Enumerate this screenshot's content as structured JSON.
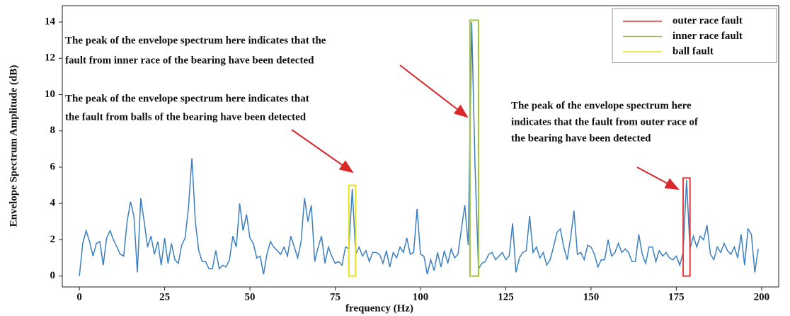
{
  "chart_data": {
    "type": "line",
    "xlabel": "frequency (Hz)",
    "ylabel": "Envelope Spectrum Amplitude (dB)",
    "color": "#3a7fc1",
    "x": [
      0,
      1,
      2,
      3,
      4,
      5,
      6,
      7,
      8,
      9,
      10,
      11,
      12,
      13,
      14,
      15,
      16,
      17,
      18,
      19,
      20,
      21,
      22,
      23,
      24,
      25,
      26,
      27,
      28,
      29,
      30,
      31,
      32,
      33,
      34,
      35,
      36,
      37,
      38,
      39,
      40,
      41,
      42,
      43,
      44,
      45,
      46,
      47,
      48,
      49,
      50,
      51,
      52,
      53,
      54,
      55,
      56,
      57,
      58,
      59,
      60,
      61,
      62,
      63,
      64,
      65,
      66,
      67,
      68,
      69,
      70,
      71,
      72,
      73,
      74,
      75,
      76,
      77,
      78,
      79,
      80,
      81,
      82,
      83,
      84,
      85,
      86,
      87,
      88,
      89,
      90,
      91,
      92,
      93,
      94,
      95,
      96,
      97,
      98,
      99,
      100,
      101,
      102,
      103,
      104,
      105,
      106,
      107,
      108,
      109,
      110,
      111,
      112,
      113,
      114,
      115,
      116,
      117,
      118,
      119,
      120,
      121,
      122,
      123,
      124,
      125,
      126,
      127,
      128,
      129,
      130,
      131,
      132,
      133,
      134,
      135,
      136,
      137,
      138,
      139,
      140,
      141,
      142,
      143,
      144,
      145,
      146,
      147,
      148,
      149,
      150,
      151,
      152,
      153,
      154,
      155,
      156,
      157,
      158,
      159,
      160,
      161,
      162,
      163,
      164,
      165,
      166,
      167,
      168,
      169,
      170,
      171,
      172,
      173,
      174,
      175,
      176,
      177,
      178,
      179,
      180,
      181,
      182,
      183,
      184,
      185,
      186,
      187,
      188,
      189,
      190,
      191,
      192,
      193,
      194,
      195,
      196,
      197,
      198,
      199
    ],
    "values": [
      0,
      1.8,
      2.5,
      1.9,
      1.1,
      1.8,
      1.9,
      0.6,
      2.1,
      2.5,
      2.0,
      1.6,
      1.2,
      1.1,
      3.0,
      4.1,
      3.3,
      0.2,
      4.3,
      3.0,
      1.6,
      2.2,
      1.2,
      1.9,
      0.6,
      2.1,
      0.7,
      1.8,
      0.9,
      0.7,
      1.7,
      2.1,
      3.8,
      6.5,
      3.0,
      1.4,
      0.8,
      0.8,
      0.4,
      0.4,
      1.4,
      0.4,
      0.6,
      0.5,
      0.9,
      2.2,
      1.6,
      4.0,
      2.5,
      3.4,
      2.1,
      1.8,
      1.0,
      1.1,
      0.1,
      1.2,
      1.9,
      1.6,
      1.4,
      1.2,
      1.6,
      1.1,
      2.2,
      1.6,
      1.0,
      1.9,
      4.3,
      3.0,
      3.9,
      0.8,
      1.6,
      2.2,
      0.7,
      1.6,
      1.1,
      0.7,
      0.8,
      0.6,
      1.6,
      1.5,
      4.8,
      1.2,
      1.6,
      1.1,
      1.4,
      0.8,
      1.3,
      1.3,
      1.2,
      0.7,
      1.4,
      0.5,
      1.3,
      1.0,
      1.6,
      1.3,
      2.1,
      1.2,
      1.3,
      3.7,
      1.2,
      1.1,
      0.1,
      0.9,
      0.3,
      1.3,
      0.5,
      1.4,
      0.7,
      1.5,
      1.0,
      1.2,
      2.6,
      3.9,
      1.7,
      14.0,
      6.0,
      0.4,
      0.7,
      0.8,
      1.2,
      1.3,
      0.9,
      1.1,
      1.3,
      0.9,
      1.1,
      2.9,
      0.2,
      1.0,
      1.3,
      1.4,
      3.3,
      1.3,
      1.6,
      1.0,
      1.3,
      0.6,
      0.9,
      1.6,
      2.4,
      2.6,
      1.6,
      0.9,
      2.1,
      3.6,
      1.2,
      1.3,
      0.9,
      1.7,
      1.6,
      1.2,
      0.5,
      0.9,
      0.9,
      2.0,
      1.1,
      1.3,
      1.8,
      1.3,
      1.5,
      1.3,
      0.8,
      0.8,
      2.3,
      1.2,
      0.7,
      1.6,
      1.6,
      0.8,
      1.4,
      1.1,
      1.3,
      1.0,
      0.9,
      1.1,
      0.6,
      1.3,
      5.3,
      1.5,
      2.2,
      1.6,
      2.2,
      2.0,
      2.8,
      1.2,
      0.9,
      1.6,
      1.3,
      1.8,
      1.4,
      1.2,
      1.6,
      1.0,
      2.3,
      0.6,
      2.6,
      2.3,
      0.2,
      1.5
    ],
    "xlim": [
      -5,
      205
    ],
    "ylim": [
      -0.6,
      14.9
    ],
    "xticks": [
      0,
      25,
      50,
      75,
      100,
      125,
      150,
      175,
      200
    ],
    "yticks": [
      0,
      2,
      4,
      6,
      8,
      10,
      12,
      14
    ],
    "highlights": [
      {
        "name": "outer race fault",
        "color": "#e23b3b",
        "xlim": [
          177,
          179
        ],
        "ylim": [
          0,
          5.4
        ]
      },
      {
        "name": "inner race fault",
        "color": "#9dc43a",
        "xlim": [
          114.5,
          117
        ],
        "ylim": [
          0,
          14.1
        ]
      },
      {
        "name": "ball fault",
        "color": "#e6e020",
        "xlim": [
          79,
          81
        ],
        "ylim": [
          0,
          5
        ]
      }
    ],
    "legend": "upper right",
    "annotations": [
      {
        "lines": [
          "The peak of the envelope spectrum here indicates that the",
          "fault from inner race of the bearing have been detected"
        ]
      },
      {
        "lines": [
          "The peak of the envelope spectrum here indicates that",
          "the fault from balls of the bearing have been detected"
        ]
      },
      {
        "lines": [
          "The peak of the envelope spectrum here",
          "indicates that the fault from outer race of",
          "the bearing have been detected"
        ]
      }
    ]
  }
}
